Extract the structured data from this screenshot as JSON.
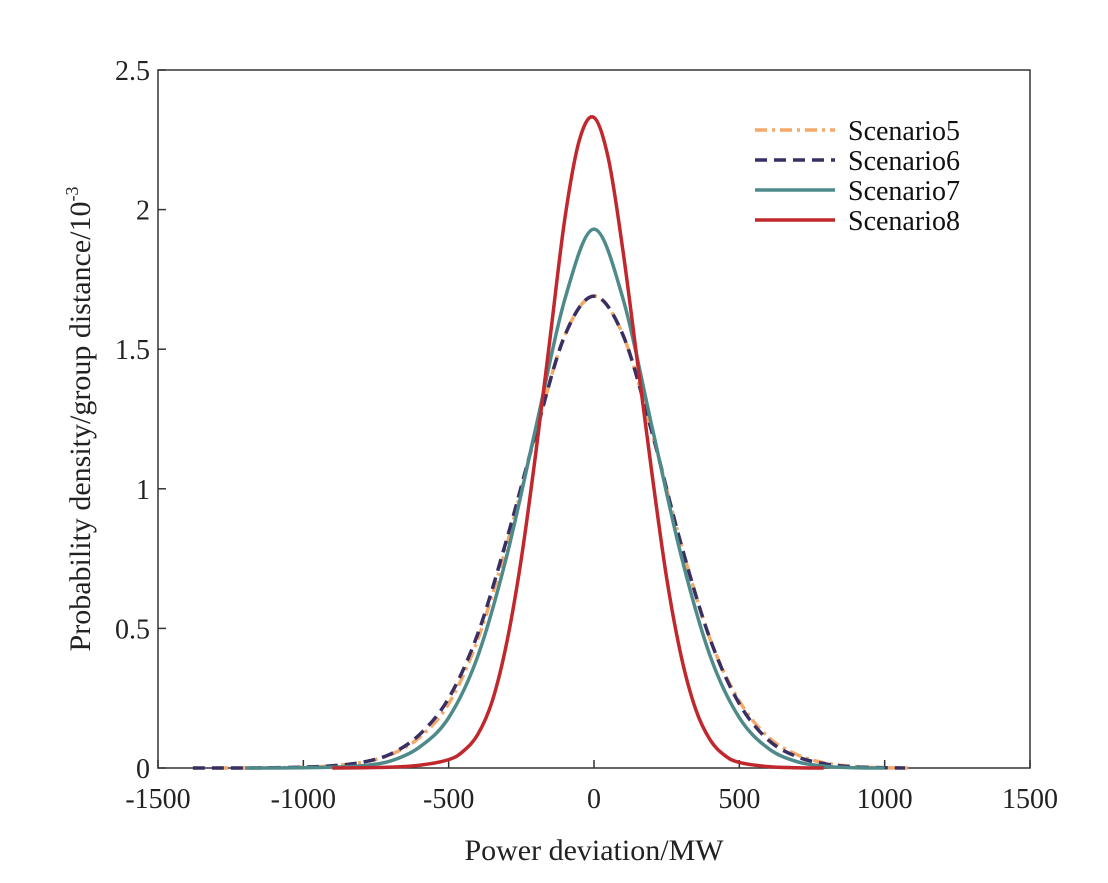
{
  "chart_data": {
    "type": "line",
    "xlabel": "Power deviation/MW",
    "ylabel_main": "Probability density/group distance/10",
    "ylabel_exponent": "-3",
    "xlim": [
      -1500,
      1500
    ],
    "ylim": [
      0,
      2.5
    ],
    "xticks": [
      -1500,
      -1000,
      -500,
      0,
      500,
      1000,
      1500
    ],
    "xtick_labels": [
      "-1500",
      "-1000",
      "-500",
      "0",
      "500",
      "1000",
      "1500"
    ],
    "yticks": [
      0,
      0.5,
      1,
      1.5,
      2,
      2.5
    ],
    "ytick_labels": [
      "0",
      "0.5",
      "1",
      "1.5",
      "2",
      "2.5"
    ],
    "grid": false,
    "legend_position": "top-right",
    "series": [
      {
        "name": "Scenario5",
        "color": "#F4A96B",
        "dash": "dash-dot",
        "x": [
          -1300,
          -1200,
          -1100,
          -1000,
          -900,
          -800,
          -700,
          -600,
          -500,
          -400,
          -300,
          -200,
          -100,
          0,
          100,
          200,
          300,
          400,
          500,
          600,
          700,
          800,
          900,
          1000,
          1080
        ],
        "y": [
          0.0,
          0.0,
          0.001,
          0.003,
          0.008,
          0.02,
          0.048,
          0.11,
          0.23,
          0.46,
          0.8,
          1.2,
          1.55,
          1.69,
          1.55,
          1.2,
          0.8,
          0.46,
          0.24,
          0.11,
          0.047,
          0.017,
          0.005,
          0.001,
          0.0
        ]
      },
      {
        "name": "Scenario6",
        "color": "#3A2F63",
        "dash": "dashed",
        "x": [
          -1380,
          -1300,
          -1200,
          -1100,
          -1000,
          -900,
          -800,
          -700,
          -600,
          -500,
          -400,
          -300,
          -200,
          -100,
          0,
          100,
          200,
          300,
          400,
          500,
          600,
          700,
          800,
          900,
          1000,
          1070
        ],
        "y": [
          0.0,
          0.0,
          0.0,
          0.001,
          0.003,
          0.008,
          0.02,
          0.05,
          0.12,
          0.25,
          0.48,
          0.82,
          1.2,
          1.55,
          1.69,
          1.55,
          1.2,
          0.8,
          0.46,
          0.23,
          0.1,
          0.04,
          0.014,
          0.004,
          0.001,
          0.0
        ]
      },
      {
        "name": "Scenario7",
        "color": "#4F8A8B",
        "dash": "solid",
        "x": [
          -1200,
          -1100,
          -1000,
          -900,
          -800,
          -700,
          -600,
          -500,
          -400,
          -300,
          -200,
          -100,
          0,
          100,
          200,
          300,
          400,
          500,
          600,
          700,
          800,
          900,
          1000
        ],
        "y": [
          0.0,
          0.0,
          0.001,
          0.003,
          0.008,
          0.025,
          0.075,
          0.18,
          0.4,
          0.76,
          1.22,
          1.68,
          1.93,
          1.68,
          1.22,
          0.76,
          0.4,
          0.18,
          0.07,
          0.022,
          0.006,
          0.001,
          0.0
        ]
      },
      {
        "name": "Scenario8",
        "color": "#C0282D",
        "dash": "solid",
        "x": [
          -900,
          -800,
          -700,
          -600,
          -500,
          -450,
          -400,
          -350,
          -300,
          -250,
          -200,
          -150,
          -100,
          -50,
          0,
          50,
          100,
          150,
          200,
          250,
          300,
          350,
          400,
          450,
          500,
          600,
          700,
          790
        ],
        "y": [
          0.0,
          0.001,
          0.003,
          0.01,
          0.03,
          0.06,
          0.12,
          0.24,
          0.45,
          0.75,
          1.13,
          1.55,
          1.97,
          2.25,
          2.33,
          2.18,
          1.85,
          1.45,
          1.05,
          0.68,
          0.4,
          0.21,
          0.1,
          0.045,
          0.02,
          0.005,
          0.001,
          0.0
        ]
      }
    ]
  }
}
